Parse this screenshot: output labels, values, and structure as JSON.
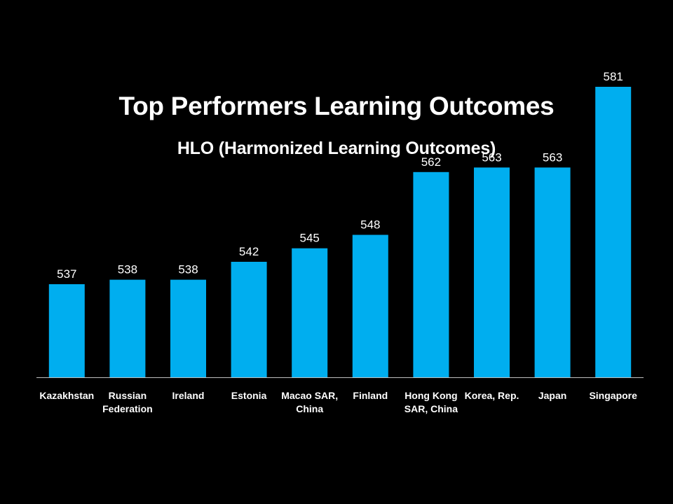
{
  "title": "Top Performers Learning Outcomes",
  "subtitle": "HLO (Harmonized Learning Outcomes)",
  "colors": {
    "background": "#000000",
    "bar": "#00aeef",
    "axis": "#bfbfbf",
    "text": "#ffffff"
  },
  "chart_data": {
    "type": "bar",
    "title": "Top Performers Learning Outcomes",
    "subtitle": "HLO (Harmonized Learning Outcomes)",
    "categories": [
      [
        "Kazakhstan"
      ],
      [
        "Russian",
        "Federation"
      ],
      [
        "Ireland"
      ],
      [
        "Estonia"
      ],
      [
        "Macao SAR,",
        "China"
      ],
      [
        "Finland"
      ],
      [
        "Hong Kong",
        "SAR, China"
      ],
      [
        "Korea, Rep."
      ],
      [
        "Japan"
      ],
      [
        "Singapore"
      ]
    ],
    "values": [
      537,
      538,
      538,
      542,
      545,
      548,
      562,
      563,
      563,
      581
    ],
    "data_labels": true,
    "grid": false,
    "legend": "none"
  }
}
